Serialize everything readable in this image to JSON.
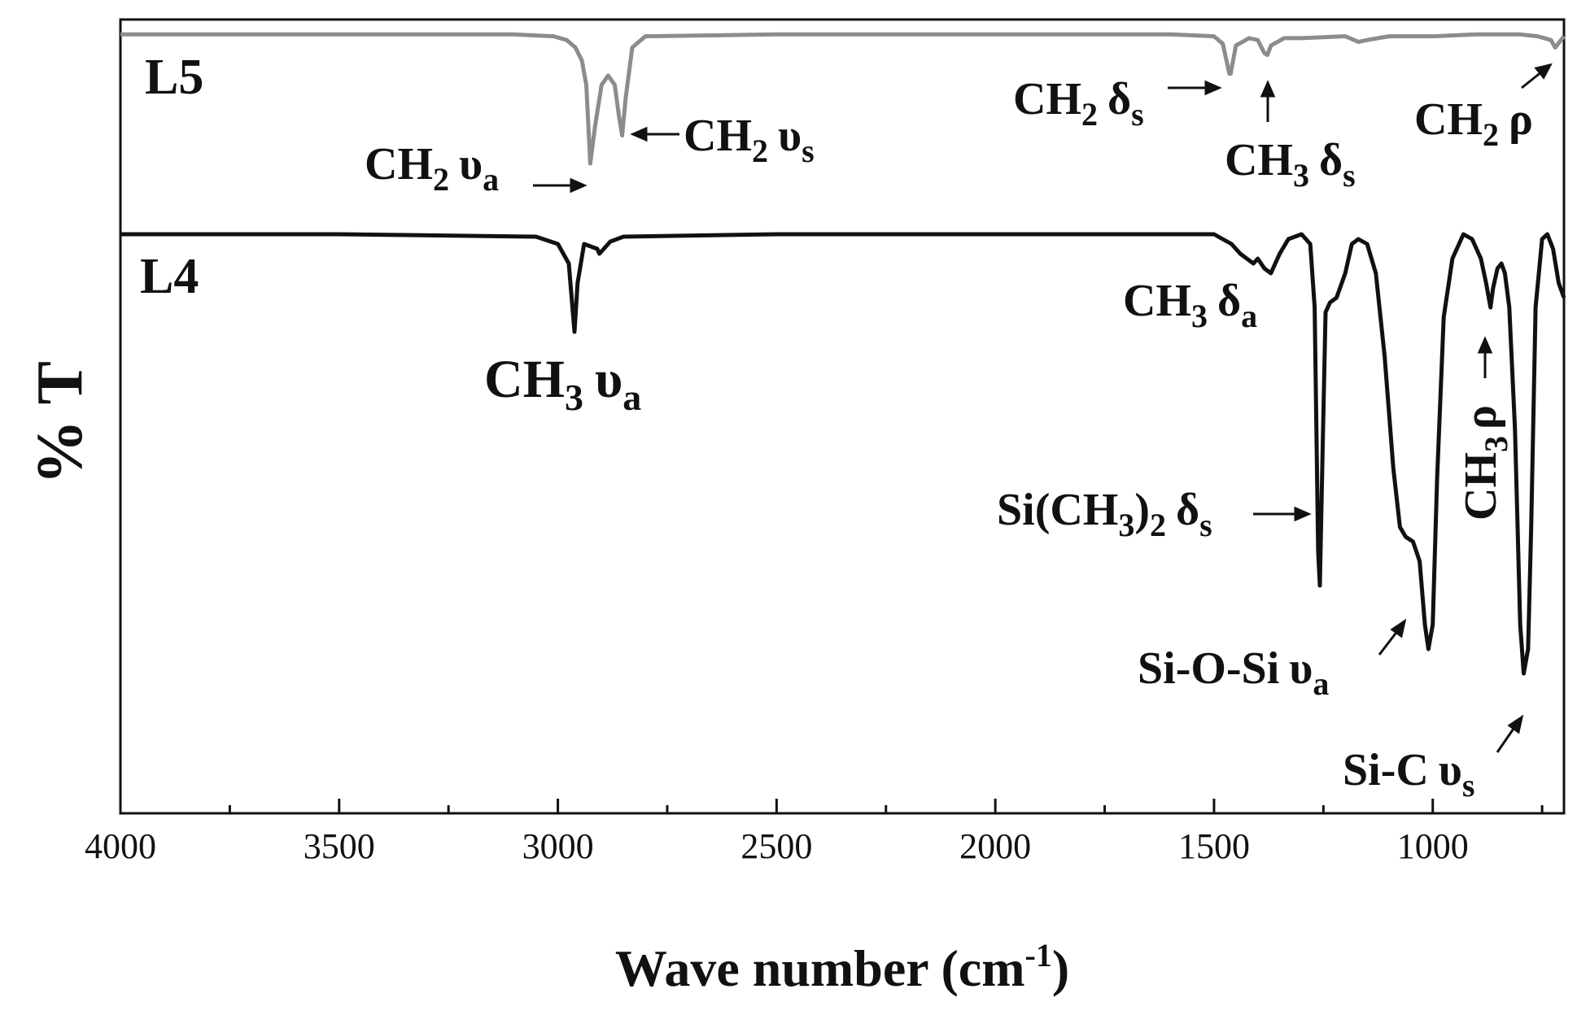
{
  "chart_data": {
    "type": "line",
    "xlabel": "Wave number (cm",
    "xlabel_sup": "-1",
    "xlabel_close": ")",
    "ylabel": "% T",
    "xlim": [
      4000,
      700
    ],
    "x_reversed": true,
    "x_ticks": [
      4000,
      3500,
      3000,
      2500,
      2000,
      1500,
      1000
    ],
    "x_tick_labels": [
      "4000",
      "3500",
      "3000",
      "2500",
      "2000",
      "1500",
      "1000"
    ],
    "y_tick_labels": false,
    "grid": false,
    "colors": {
      "L5": "#8c8c8c",
      "L4": "#111111"
    },
    "series": [
      {
        "name": "L5",
        "offset": 1.0,
        "points": [
          [
            4000,
            0.99
          ],
          [
            3500,
            0.99
          ],
          [
            3100,
            0.99
          ],
          [
            3010,
            0.98
          ],
          [
            2980,
            0.96
          ],
          [
            2960,
            0.92
          ],
          [
            2945,
            0.85
          ],
          [
            2935,
            0.72
          ],
          [
            2926,
            0.3
          ],
          [
            2915,
            0.5
          ],
          [
            2900,
            0.72
          ],
          [
            2885,
            0.77
          ],
          [
            2870,
            0.72
          ],
          [
            2860,
            0.55
          ],
          [
            2853,
            0.45
          ],
          [
            2845,
            0.65
          ],
          [
            2830,
            0.92
          ],
          [
            2800,
            0.98
          ],
          [
            2500,
            0.99
          ],
          [
            2000,
            0.99
          ],
          [
            1600,
            0.99
          ],
          [
            1500,
            0.98
          ],
          [
            1480,
            0.94
          ],
          [
            1465,
            0.78
          ],
          [
            1462,
            0.78
          ],
          [
            1450,
            0.93
          ],
          [
            1420,
            0.97
          ],
          [
            1400,
            0.96
          ],
          [
            1385,
            0.89
          ],
          [
            1378,
            0.88
          ],
          [
            1370,
            0.93
          ],
          [
            1340,
            0.97
          ],
          [
            1300,
            0.97
          ],
          [
            1200,
            0.98
          ],
          [
            1170,
            0.95
          ],
          [
            1150,
            0.96
          ],
          [
            1100,
            0.98
          ],
          [
            1000,
            0.98
          ],
          [
            900,
            0.99
          ],
          [
            800,
            0.99
          ],
          [
            760,
            0.98
          ],
          [
            730,
            0.96
          ],
          [
            720,
            0.92
          ],
          [
            710,
            0.95
          ],
          [
            700,
            0.98
          ]
        ]
      },
      {
        "name": "L4",
        "offset": 0.0,
        "points": [
          [
            4000,
            1.0
          ],
          [
            3500,
            1.0
          ],
          [
            3050,
            0.995
          ],
          [
            3000,
            0.98
          ],
          [
            2975,
            0.94
          ],
          [
            2962,
            0.8
          ],
          [
            2955,
            0.9
          ],
          [
            2940,
            0.98
          ],
          [
            2910,
            0.97
          ],
          [
            2905,
            0.96
          ],
          [
            2880,
            0.985
          ],
          [
            2850,
            0.995
          ],
          [
            2500,
            1.0
          ],
          [
            2000,
            1.0
          ],
          [
            1500,
            1.0
          ],
          [
            1460,
            0.98
          ],
          [
            1440,
            0.96
          ],
          [
            1425,
            0.95
          ],
          [
            1410,
            0.94
          ],
          [
            1400,
            0.95
          ],
          [
            1385,
            0.93
          ],
          [
            1370,
            0.92
          ],
          [
            1350,
            0.96
          ],
          [
            1330,
            0.99
          ],
          [
            1300,
            1.0
          ],
          [
            1280,
            0.98
          ],
          [
            1270,
            0.85
          ],
          [
            1262,
            0.35
          ],
          [
            1258,
            0.28
          ],
          [
            1252,
            0.55
          ],
          [
            1245,
            0.84
          ],
          [
            1235,
            0.86
          ],
          [
            1220,
            0.87
          ],
          [
            1200,
            0.92
          ],
          [
            1185,
            0.98
          ],
          [
            1170,
            0.99
          ],
          [
            1150,
            0.98
          ],
          [
            1130,
            0.92
          ],
          [
            1110,
            0.75
          ],
          [
            1090,
            0.52
          ],
          [
            1075,
            0.4
          ],
          [
            1062,
            0.38
          ],
          [
            1045,
            0.37
          ],
          [
            1030,
            0.33
          ],
          [
            1018,
            0.2
          ],
          [
            1010,
            0.15
          ],
          [
            1000,
            0.2
          ],
          [
            990,
            0.5
          ],
          [
            975,
            0.83
          ],
          [
            955,
            0.95
          ],
          [
            930,
            1.0
          ],
          [
            910,
            0.99
          ],
          [
            890,
            0.95
          ],
          [
            878,
            0.9
          ],
          [
            868,
            0.85
          ],
          [
            862,
            0.89
          ],
          [
            852,
            0.93
          ],
          [
            843,
            0.94
          ],
          [
            835,
            0.92
          ],
          [
            825,
            0.85
          ],
          [
            812,
            0.6
          ],
          [
            800,
            0.2
          ],
          [
            792,
            0.1
          ],
          [
            782,
            0.15
          ],
          [
            775,
            0.4
          ],
          [
            765,
            0.85
          ],
          [
            750,
            0.99
          ],
          [
            738,
            1.0
          ],
          [
            725,
            0.97
          ],
          [
            712,
            0.9
          ],
          [
            700,
            0.87
          ]
        ]
      }
    ],
    "annotations": [
      {
        "main": "L5"
      },
      {
        "main": "L4"
      },
      {
        "main": "CH",
        "sub1": "2",
        "greek": "υ",
        "sub2": "a"
      },
      {
        "main": "CH",
        "sub1": "2",
        "greek": "υ",
        "sub2": "s"
      },
      {
        "main": "CH",
        "sub1": "2",
        "greek": "δ",
        "sub2": "s"
      },
      {
        "main": "CH",
        "sub1": "3",
        "greek": "δ",
        "sub2": "s"
      },
      {
        "main": "CH",
        "sub1": "2",
        "greek": "ρ",
        "sub2": ""
      },
      {
        "main": "CH",
        "sub1": "3",
        "greek": "υ",
        "sub2": "a"
      },
      {
        "main": "CH",
        "sub1": "3",
        "greek": "δ",
        "sub2": "a"
      },
      {
        "main": "Si(CH",
        "sub1": "3",
        "mid": ")",
        "sub1b": "2",
        "greek": "δ",
        "sub2": "s"
      },
      {
        "main": "Si-O-Si",
        "greek": "υ",
        "sub2": "a"
      },
      {
        "main": "Si-C",
        "greek": "υ",
        "sub2": "s"
      },
      {
        "main": "CH",
        "sub1": "3",
        "greek": "ρ",
        "sub2": ""
      }
    ]
  }
}
